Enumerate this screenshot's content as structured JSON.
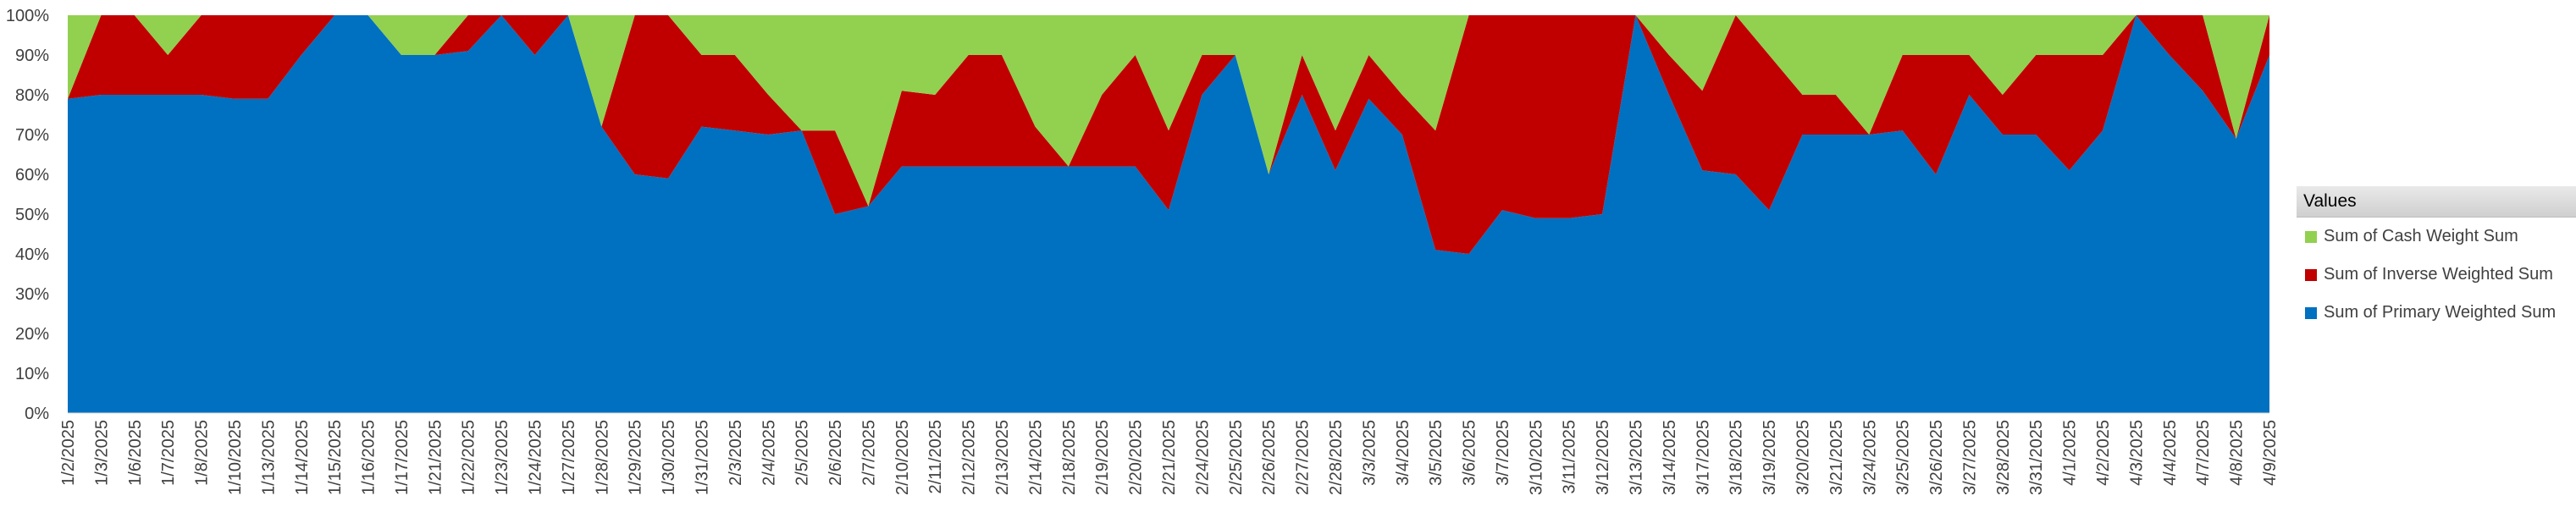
{
  "chart_data": {
    "type": "area",
    "stacked": "percent",
    "categories": [
      "1/2/2025",
      "1/3/2025",
      "1/6/2025",
      "1/7/2025",
      "1/8/2025",
      "1/10/2025",
      "1/13/2025",
      "1/14/2025",
      "1/15/2025",
      "1/16/2025",
      "1/17/2025",
      "1/21/2025",
      "1/22/2025",
      "1/23/2025",
      "1/24/2025",
      "1/27/2025",
      "1/28/2025",
      "1/29/2025",
      "1/30/2025",
      "1/31/2025",
      "2/3/2025",
      "2/4/2025",
      "2/5/2025",
      "2/6/2025",
      "2/7/2025",
      "2/10/2025",
      "2/11/2025",
      "2/12/2025",
      "2/13/2025",
      "2/14/2025",
      "2/18/2025",
      "2/19/2025",
      "2/20/2025",
      "2/21/2025",
      "2/24/2025",
      "2/25/2025",
      "2/26/2025",
      "2/27/2025",
      "2/28/2025",
      "3/3/2025",
      "3/4/2025",
      "3/5/2025",
      "3/6/2025",
      "3/7/2025",
      "3/10/2025",
      "3/11/2025",
      "3/12/2025",
      "3/13/2025",
      "3/14/2025",
      "3/17/2025",
      "3/18/2025",
      "3/19/2025",
      "3/20/2025",
      "3/21/2025",
      "3/24/2025",
      "3/25/2025",
      "3/26/2025",
      "3/27/2025",
      "3/28/2025",
      "3/31/2025",
      "4/1/2025",
      "4/2/2025",
      "4/3/2025",
      "4/4/2025",
      "4/7/2025",
      "4/8/2025",
      "4/9/2025"
    ],
    "series": [
      {
        "name": "Sum of Primary Weighted Sum",
        "color": "#0070C0",
        "values": [
          79,
          80,
          80,
          80,
          80,
          79,
          79,
          90,
          100,
          100,
          90,
          90,
          91,
          100,
          90,
          100,
          72,
          60,
          59,
          72,
          71,
          70,
          71,
          50,
          52,
          62,
          62,
          62,
          62,
          62,
          62,
          62,
          62,
          51,
          80,
          90,
          60,
          80,
          61,
          79,
          70,
          41,
          40,
          51,
          49,
          49,
          50,
          100,
          80,
          61,
          60,
          51,
          70,
          70,
          70,
          71,
          60,
          80,
          70,
          70,
          61,
          71,
          100,
          90,
          81,
          69,
          90
        ]
      },
      {
        "name": "Sum of Inverse Weighted Sum",
        "color": "#C00000",
        "values": [
          0,
          20,
          20,
          10,
          20,
          21,
          21,
          10,
          0,
          0,
          0,
          0,
          9,
          0,
          10,
          0,
          0,
          40,
          41,
          18,
          19,
          10,
          0,
          21,
          0,
          19,
          18,
          28,
          28,
          10,
          0,
          18,
          28,
          20,
          10,
          0,
          0,
          10,
          10,
          11,
          10,
          30,
          60,
          49,
          51,
          51,
          50,
          0,
          10,
          20,
          40,
          39,
          10,
          10,
          0,
          19,
          30,
          10,
          10,
          20,
          29,
          19,
          0,
          10,
          19,
          0,
          10
        ]
      },
      {
        "name": "Sum of Cash Weight Sum",
        "color": "#92D050",
        "values": [
          21,
          0,
          0,
          10,
          0,
          0,
          0,
          0,
          0,
          0,
          10,
          10,
          0,
          0,
          0,
          0,
          28,
          0,
          0,
          10,
          10,
          20,
          29,
          29,
          48,
          19,
          20,
          10,
          10,
          28,
          38,
          20,
          10,
          29,
          10,
          10,
          40,
          10,
          29,
          10,
          20,
          29,
          0,
          0,
          0,
          0,
          0,
          0,
          10,
          19,
          0,
          10,
          20,
          20,
          30,
          10,
          10,
          10,
          20,
          10,
          10,
          10,
          0,
          0,
          0,
          31,
          0
        ]
      }
    ],
    "ylim": [
      0,
      1
    ],
    "y_ticks": [
      "0%",
      "10%",
      "20%",
      "30%",
      "40%",
      "50%",
      "60%",
      "70%",
      "80%",
      "90%",
      "100%"
    ],
    "grid": false,
    "legend_position": "right",
    "legend_title": "Values",
    "legend_order": [
      "Sum of Cash Weight Sum",
      "Sum of Inverse Weighted Sum",
      "Sum of Primary Weighted Sum"
    ]
  }
}
